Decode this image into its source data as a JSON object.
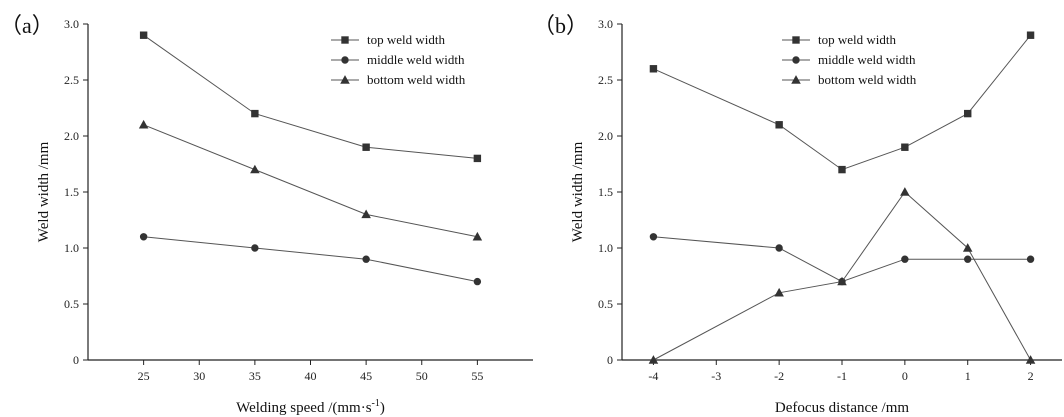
{
  "chart_data": [
    {
      "type": "line",
      "panel_label": "（a）",
      "xlabel": "Welding speed /(mm·s",
      "xlabel_sup": "-1",
      "xlabel_close": ")",
      "ylabel": "Weld width /mm",
      "xlim": [
        20,
        60
      ],
      "ylim": [
        0,
        3.0
      ],
      "xticks": [
        25,
        30,
        35,
        40,
        45,
        50,
        55
      ],
      "xtick_labels": [
        "25",
        "30",
        "35",
        "40",
        "45",
        "50",
        "55"
      ],
      "yticks": [
        0,
        0.5,
        1.0,
        1.5,
        2.0,
        2.5,
        3.0
      ],
      "ytick_labels": [
        "0",
        "0.5",
        "1.0",
        "1.5",
        "2.0",
        "2.5",
        "3.0"
      ],
      "x": [
        25,
        35,
        45,
        55
      ],
      "legend_position": "top-right",
      "series": [
        {
          "name": "top weld width",
          "marker": "square",
          "values": [
            2.9,
            2.2,
            1.9,
            1.8
          ]
        },
        {
          "name": "middle weld width",
          "marker": "circle",
          "values": [
            1.1,
            1.0,
            0.9,
            0.7
          ]
        },
        {
          "name": "bottom weld width",
          "marker": "triangle",
          "values": [
            2.1,
            1.7,
            1.3,
            1.1
          ]
        }
      ]
    },
    {
      "type": "line",
      "panel_label": "（b）",
      "xlabel": "Defocus distance /mm",
      "ylabel": "Weld width /mm",
      "xlim": [
        -4.5,
        2.5
      ],
      "ylim": [
        0,
        3.0
      ],
      "xticks": [
        -4,
        -3,
        -2,
        -1,
        0,
        1,
        2
      ],
      "xtick_labels": [
        "-4",
        "-3",
        "-2",
        "-1",
        "0",
        "1",
        "2"
      ],
      "yticks": [
        0,
        0.5,
        1.0,
        1.5,
        2.0,
        2.5,
        3.0
      ],
      "ytick_labels": [
        "0",
        "0.5",
        "1.0",
        "1.5",
        "2.0",
        "2.5",
        "3.0"
      ],
      "x": [
        -4,
        -2,
        -1,
        0,
        1,
        2
      ],
      "legend_position": "top-right",
      "series": [
        {
          "name": "top weld width",
          "marker": "square",
          "values": [
            2.6,
            2.1,
            1.7,
            1.9,
            2.2,
            2.9
          ]
        },
        {
          "name": "middle weld width",
          "marker": "circle",
          "values": [
            1.1,
            1.0,
            0.7,
            0.9,
            0.9,
            0.9
          ]
        },
        {
          "name": "bottom weld width",
          "marker": "triangle",
          "values": [
            0.0,
            0.6,
            0.7,
            1.5,
            1.0,
            0.0
          ]
        }
      ]
    }
  ]
}
